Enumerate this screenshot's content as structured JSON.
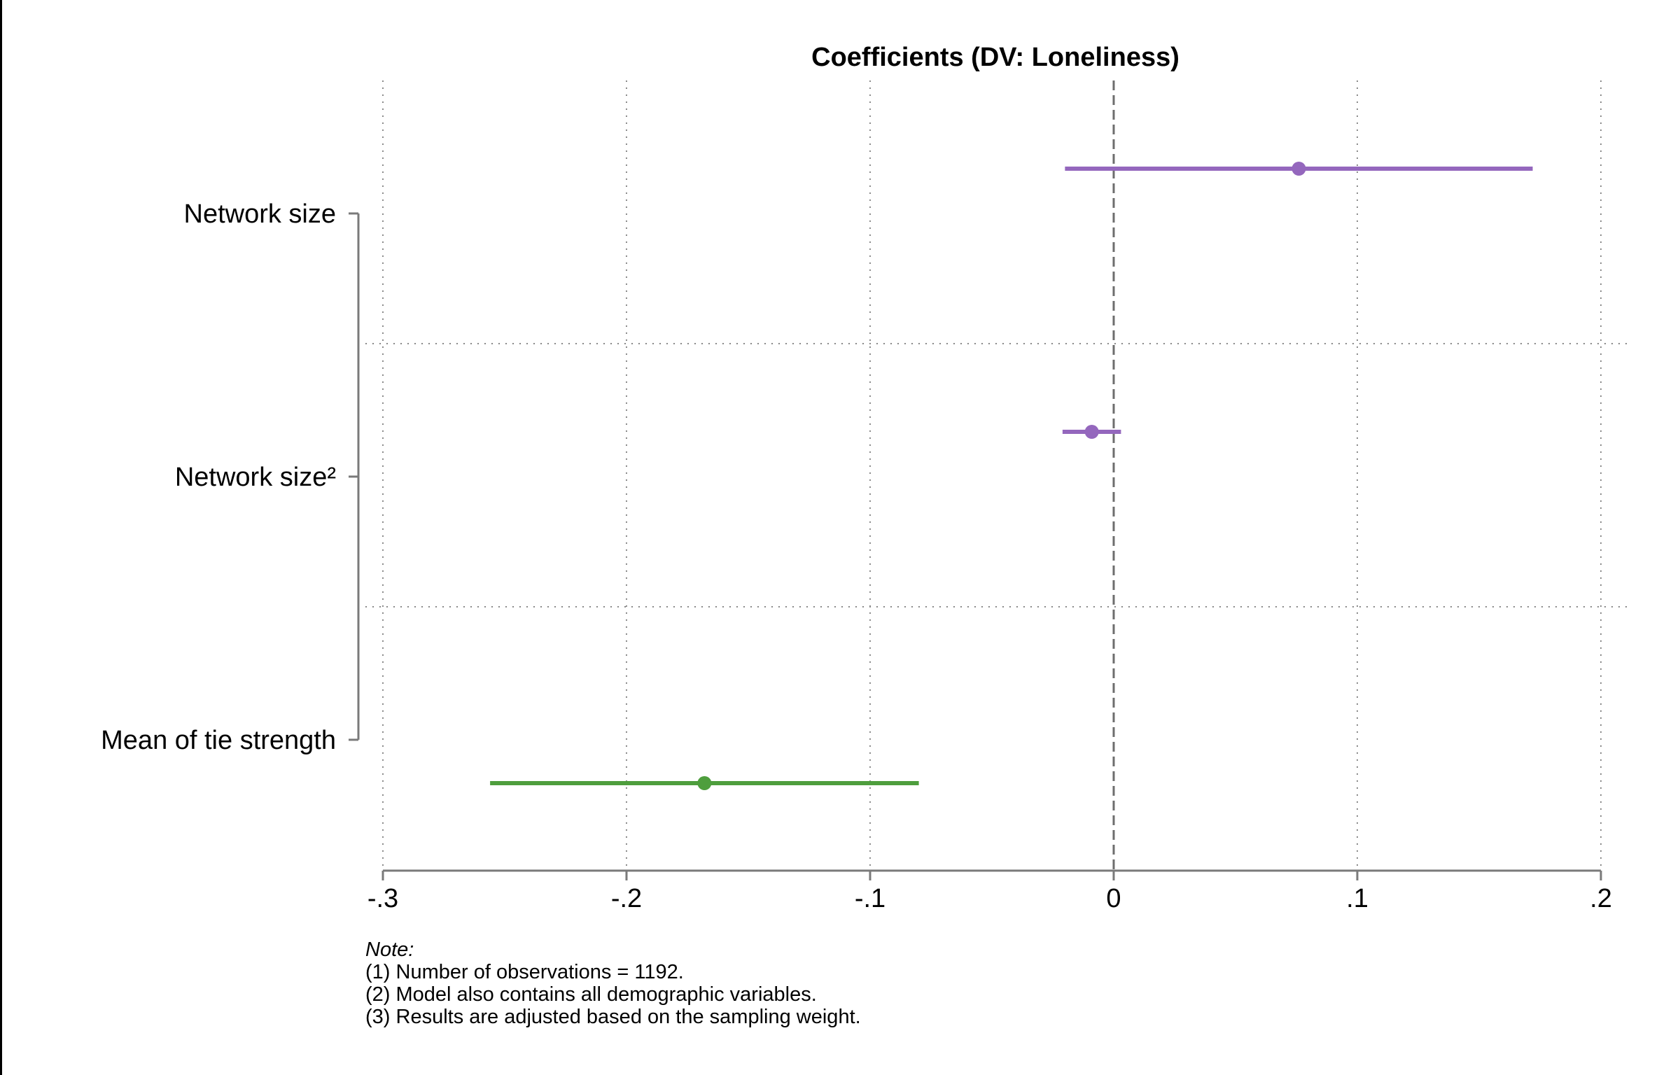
{
  "chart_data": {
    "type": "coefficient-plot",
    "title": "Coefficients (DV: Loneliness)",
    "xlabel": "",
    "ylabel": "",
    "xlim": [
      -0.3,
      0.2
    ],
    "xticks": [
      -0.3,
      -0.2,
      -0.1,
      0,
      0.1,
      0.2
    ],
    "xtick_labels": [
      "-.3",
      "-.2",
      "-.1",
      "0",
      ".1",
      ".2"
    ],
    "reference_line": 0,
    "grid": true,
    "categories": [
      "Network size",
      "Network size²",
      "Mean of tie strength"
    ],
    "points": [
      {
        "category": "Network size",
        "estimate": 0.076,
        "ci_low": -0.02,
        "ci_high": 0.172,
        "color": "#9467BD"
      },
      {
        "category": "Network size²",
        "estimate": -0.009,
        "ci_low": -0.021,
        "ci_high": 0.003,
        "color": "#9467BD"
      },
      {
        "category": "Mean of tie strength",
        "estimate": -0.168,
        "ci_low": -0.256,
        "ci_high": -0.08,
        "color": "#4E9E3D"
      }
    ]
  },
  "note": {
    "heading": "Note:",
    "lines": [
      "(1) Number of observations = 1192.",
      "(2) Model also contains all demographic variables.",
      "(3) Results are adjusted based on the sampling weight."
    ]
  }
}
